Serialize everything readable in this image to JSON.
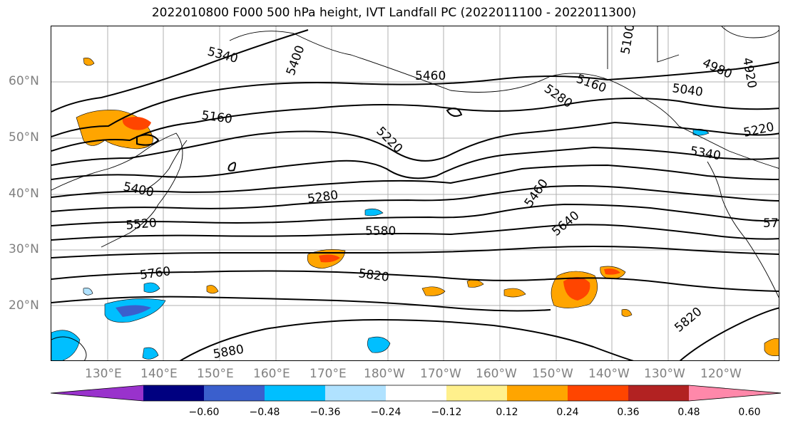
{
  "title": "2022010800 F000 500 hPa height, IVT Landfall PC (2022011100 - 2022011300)",
  "lat_labels": [
    "60°N",
    "50°N",
    "40°N",
    "30°N",
    "20°N"
  ],
  "lon_labels": [
    "130°E",
    "140°E",
    "150°E",
    "160°E",
    "170°E",
    "180°W",
    "170°W",
    "160°W",
    "150°W",
    "140°W",
    "130°W",
    "120°W"
  ],
  "contour_labels": [
    "5340",
    "5400",
    "5460",
    "5160",
    "5220",
    "5280",
    "5400",
    "5520",
    "5580",
    "5460",
    "5640",
    "5760",
    "5820",
    "5880",
    "5820",
    "5160",
    "5040",
    "5100",
    "4980",
    "4920",
    "5220",
    "5340",
    "5280",
    "57"
  ],
  "colorbar": {
    "colors": [
      "#9932cc",
      "#000080",
      "#3a5fcd",
      "#00bfff",
      "#b0e2ff",
      "#ffffff",
      "#fff08c",
      "#ffa500",
      "#ff4500",
      "#b22222",
      "#ff88aa"
    ],
    "tick_labels": [
      "−0.60",
      "−0.48",
      "−0.36",
      "−0.24",
      "−0.12",
      "0.12",
      "0.24",
      "0.36",
      "0.48",
      "0.60"
    ]
  }
}
